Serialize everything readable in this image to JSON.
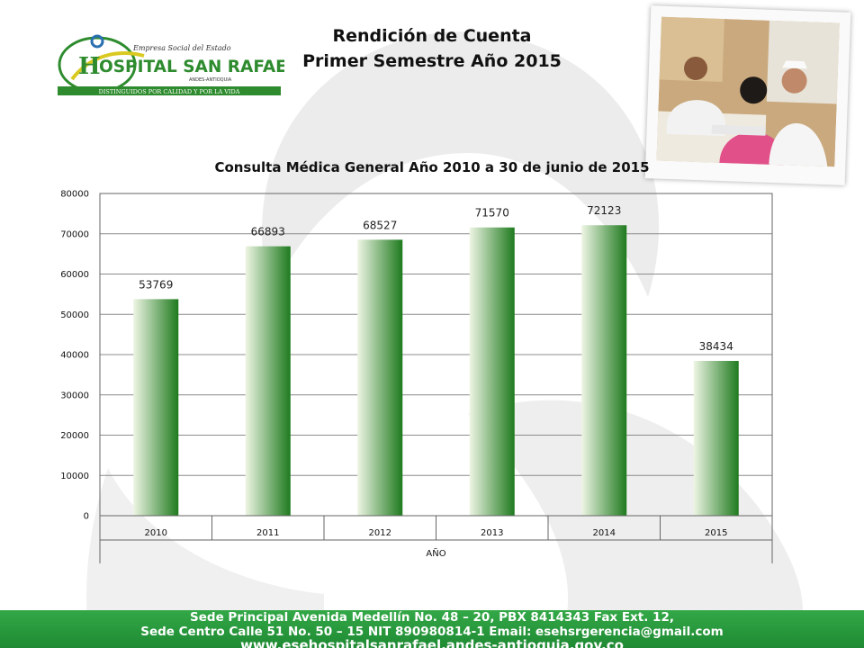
{
  "header": {
    "title_line1": "Rendición de Cuenta",
    "title_line2": "Primer Semestre  Año  2015"
  },
  "logo": {
    "top_text": "Empresa Social del Estado",
    "name": "OSPITAL SAN RAFAEL",
    "initial": "H",
    "location": "ANDES-ANTIOQUIA",
    "slogan": "DISTINGUIDOS POR CALIDAD Y POR LA VIDA",
    "colors": {
      "green": "#2e8b2e",
      "yellow": "#d9c920",
      "blue": "#2a6fb0"
    }
  },
  "photo": {
    "icon": "medical-consultation-photo"
  },
  "chart_data": {
    "type": "bar",
    "title": "Consulta  Médica  General  Año  2010  a  30  de  junio  de  2015",
    "categories": [
      "2010",
      "2011",
      "2012",
      "2013",
      "2014",
      "2015"
    ],
    "values": [
      53769,
      66893,
      68527,
      71570,
      72123,
      38434
    ],
    "xlabel": "AÑO",
    "ylabel": "",
    "ylim": [
      0,
      80000
    ],
    "yticks": [
      0,
      10000,
      20000,
      30000,
      40000,
      50000,
      60000,
      70000,
      80000
    ],
    "grid": true,
    "legend": "none",
    "bar_color_light": "#eef5e4",
    "bar_color_dark": "#1e7a1e"
  },
  "footer": {
    "line1": "Sede Principal Avenida Medellín No. 48 – 20, PBX 8414343 Fax Ext. 12,",
    "line2": "Sede Centro Calle 51 No. 50 – 15 NIT 890980814-1 Email: esehsrgerencia@gmail.com",
    "line3": "www.esehospitalsanrafael.andes-antioquia.gov.co",
    "color": "#2ea043"
  }
}
